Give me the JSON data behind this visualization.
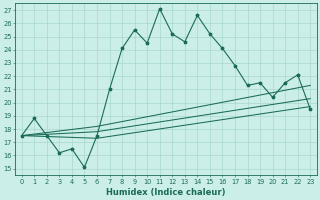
{
  "xlabel": "Humidex (Indice chaleur)",
  "bg_color": "#cceee8",
  "grid_color": "#a8d8d0",
  "line_color": "#1a6b5a",
  "xlim": [
    -0.5,
    23.5
  ],
  "ylim": [
    14.5,
    27.5
  ],
  "xticks": [
    0,
    1,
    2,
    3,
    4,
    5,
    6,
    7,
    8,
    9,
    10,
    11,
    12,
    13,
    14,
    15,
    16,
    17,
    18,
    19,
    20,
    21,
    22,
    23
  ],
  "yticks": [
    15,
    16,
    17,
    18,
    19,
    20,
    21,
    22,
    23,
    24,
    25,
    26,
    27
  ],
  "main_line_x": [
    0,
    1,
    2,
    3,
    4,
    5,
    6,
    7,
    8,
    9,
    10,
    11,
    12,
    13,
    14,
    15,
    16,
    17,
    18,
    19,
    20,
    21,
    22,
    23
  ],
  "main_line_y": [
    17.5,
    18.8,
    17.5,
    16.2,
    16.5,
    15.1,
    17.5,
    21.0,
    24.1,
    25.5,
    24.5,
    27.1,
    25.2,
    24.6,
    26.6,
    25.2,
    24.1,
    22.8,
    21.3,
    21.5,
    20.4,
    21.5,
    22.1,
    19.5
  ],
  "line2_x": [
    0,
    6,
    23
  ],
  "line2_y": [
    17.5,
    18.2,
    21.3
  ],
  "line3_x": [
    0,
    6,
    23
  ],
  "line3_y": [
    17.5,
    17.8,
    20.3
  ],
  "line4_x": [
    0,
    6,
    23
  ],
  "line4_y": [
    17.5,
    17.3,
    19.7
  ]
}
